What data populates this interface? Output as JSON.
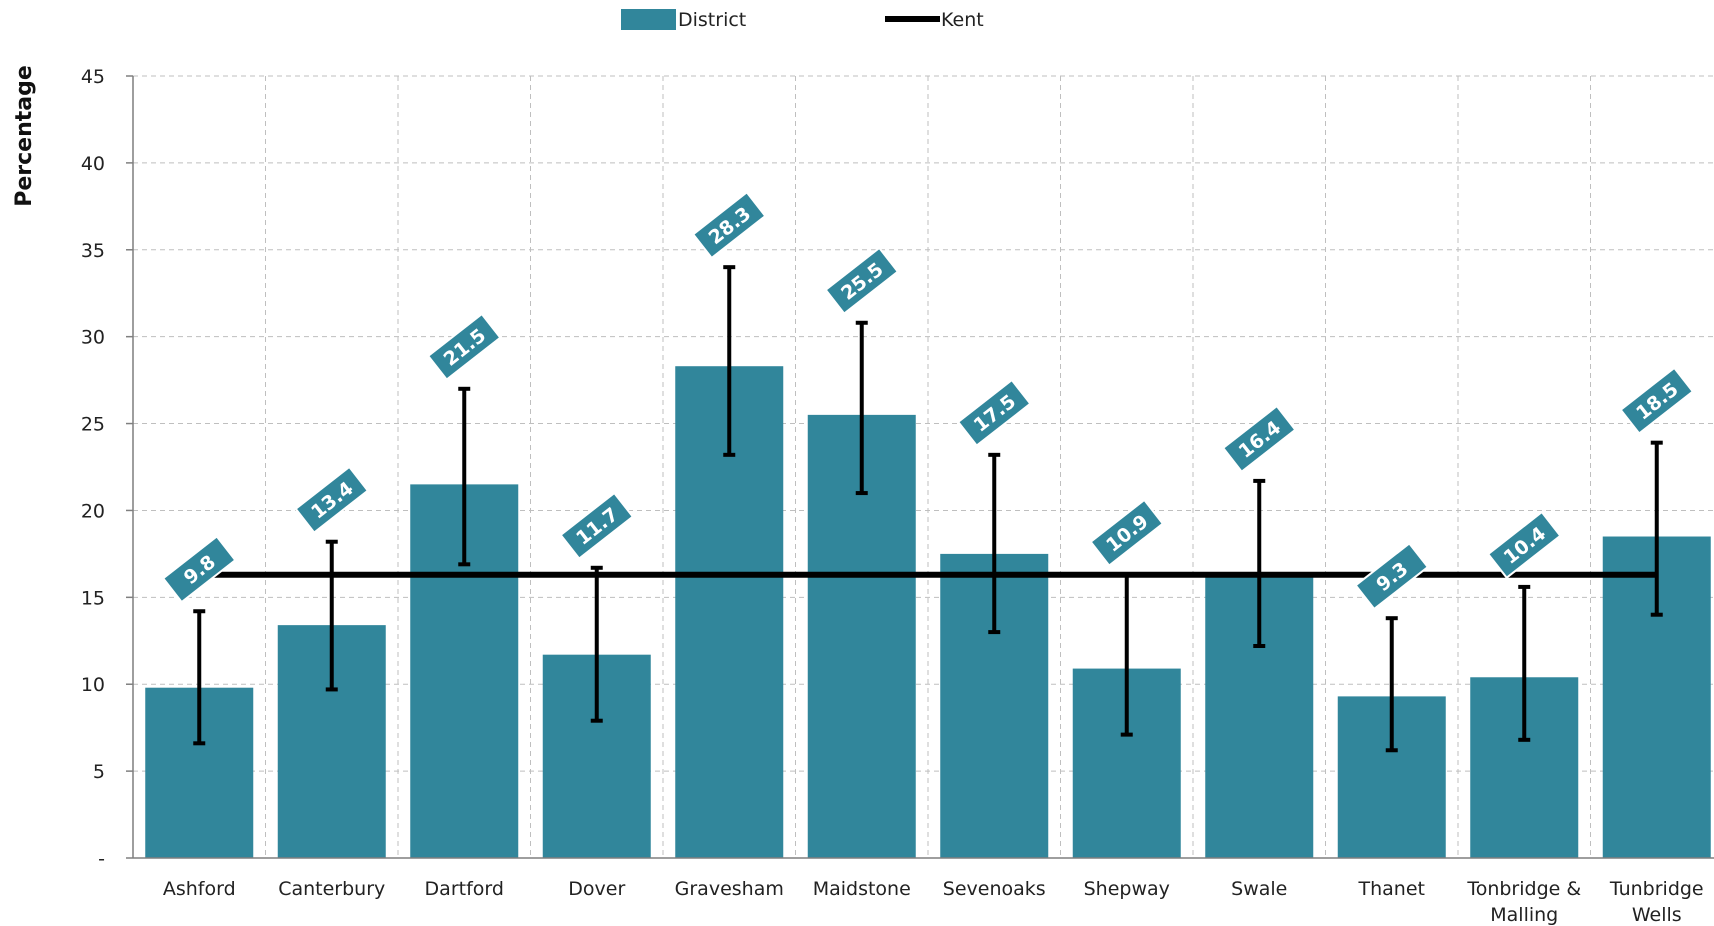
{
  "chart_data": {
    "type": "bar",
    "ylabel": "Percentage",
    "ylim": [
      0,
      45
    ],
    "yticks": [
      0,
      5,
      10,
      15,
      20,
      25,
      30,
      35,
      40,
      45
    ],
    "ytick_labels": [
      "-",
      "5",
      "10",
      "15",
      "20",
      "25",
      "30",
      "35",
      "40",
      "45"
    ],
    "grid": true,
    "legend_position": "top-center",
    "categories": [
      "Ashford",
      "Canterbury",
      "Dartford",
      "Dover",
      "Gravesham",
      "Maidstone",
      "Sevenoaks",
      "Shepway",
      "Swale",
      "Thanet",
      "Tonbridge & Malling",
      "Tunbridge Wells"
    ],
    "category_lines": [
      [
        "Ashford"
      ],
      [
        "Canterbury"
      ],
      [
        "Dartford"
      ],
      [
        "Dover"
      ],
      [
        "Gravesham"
      ],
      [
        "Maidstone"
      ],
      [
        "Sevenoaks"
      ],
      [
        "Shepway"
      ],
      [
        "Swale"
      ],
      [
        "Thanet"
      ],
      [
        "Tonbridge &",
        "Malling"
      ],
      [
        "Tunbridge",
        "Wells"
      ]
    ],
    "series": [
      {
        "name": "District",
        "type": "bar",
        "color": "#31869b",
        "values": [
          9.8,
          13.4,
          21.5,
          11.7,
          28.3,
          25.5,
          17.5,
          10.9,
          16.4,
          9.3,
          10.4,
          18.5
        ],
        "value_labels": [
          "9.8",
          "13.4",
          "21.5",
          "11.7",
          "28.3",
          "25.5",
          "17.5",
          "10.9",
          "16.4",
          "9.3",
          "10.4",
          "18.5"
        ],
        "error_low": [
          6.6,
          9.7,
          16.9,
          7.9,
          23.2,
          21.0,
          13.0,
          7.1,
          12.2,
          6.2,
          6.8,
          14.0
        ],
        "error_high": [
          14.2,
          18.2,
          27.0,
          16.7,
          34.0,
          30.8,
          23.2,
          16.3,
          21.7,
          13.8,
          15.6,
          23.9
        ]
      },
      {
        "name": "Kent",
        "type": "line",
        "color": "#000000",
        "value": 16.3
      }
    ]
  }
}
